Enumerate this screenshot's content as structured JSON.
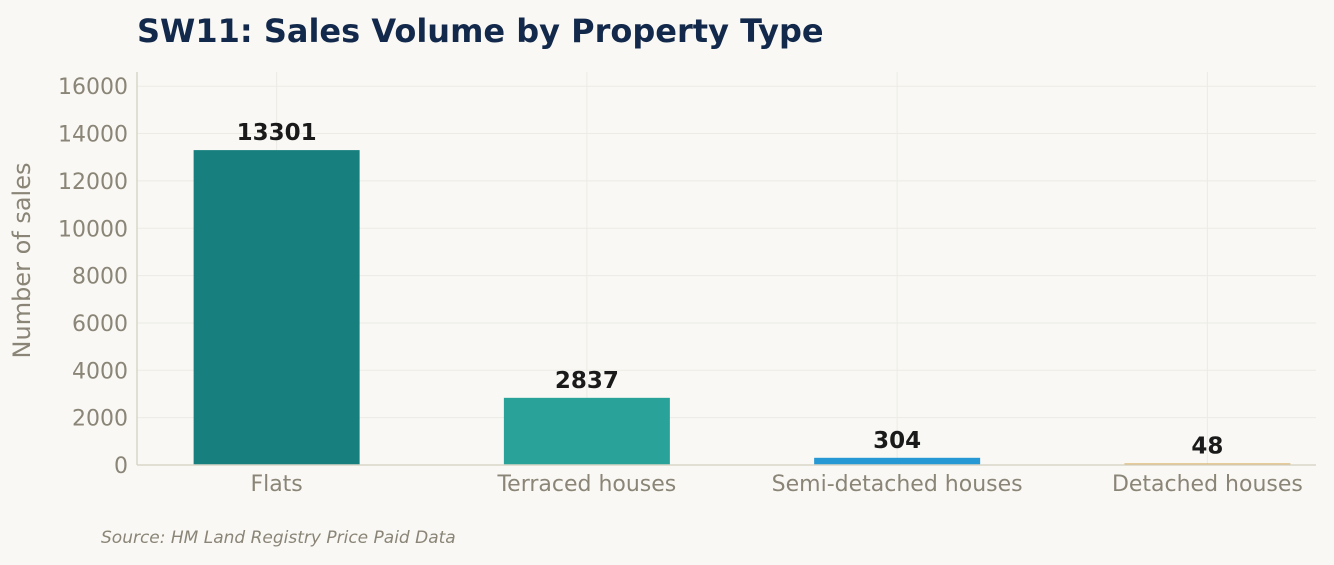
{
  "chart_data": {
    "type": "bar",
    "title": "SW11: Sales Volume by Property Type",
    "xlabel": "",
    "ylabel": "Number of sales",
    "categories": [
      "Flats",
      "Terraced houses",
      "Semi-detached houses",
      "Detached houses"
    ],
    "values": [
      13301,
      2837,
      304,
      48
    ],
    "value_labels": [
      "13301",
      "2837",
      "304",
      "48"
    ],
    "colors": [
      "#17807f",
      "#29a39a",
      "#2698d4",
      "#d4a040"
    ],
    "ylim": [
      0,
      16600
    ],
    "yticks": [
      0,
      2000,
      4000,
      6000,
      8000,
      10000,
      12000,
      14000,
      16000
    ],
    "ytick_labels": [
      "0",
      "2000",
      "4000",
      "6000",
      "8000",
      "10000",
      "12000",
      "14000",
      "16000"
    ],
    "grid": true,
    "legend": "none"
  },
  "source_note": "Source: HM Land Registry Price Paid Data"
}
